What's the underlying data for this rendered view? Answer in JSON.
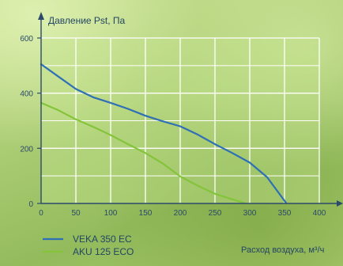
{
  "chart_data": {
    "type": "line",
    "ylabel": "Давление Pst, Па",
    "xlabel": "Расход воздуха, м³/ч",
    "xlim": [
      0,
      400
    ],
    "ylim": [
      0,
      600
    ],
    "x_ticks": [
      0,
      50,
      100,
      150,
      200,
      250,
      300,
      350,
      400
    ],
    "y_ticks": [
      0,
      200,
      400,
      600
    ],
    "grid": true,
    "legend_position": "bottom-left",
    "series": [
      {
        "name": "VEKA 350 EC",
        "color": "#2f6fb5",
        "x": [
          0,
          25,
          50,
          75,
          100,
          125,
          150,
          175,
          200,
          225,
          250,
          275,
          300,
          325,
          352
        ],
        "y": [
          505,
          460,
          415,
          385,
          365,
          343,
          318,
          298,
          280,
          250,
          215,
          183,
          148,
          95,
          3
        ]
      },
      {
        "name": "AKU 125 ECO",
        "color": "#84c43a",
        "x": [
          0,
          25,
          50,
          75,
          100,
          125,
          150,
          175,
          200,
          225,
          250,
          275,
          292
        ],
        "y": [
          365,
          338,
          305,
          278,
          248,
          215,
          183,
          145,
          98,
          65,
          35,
          15,
          2
        ]
      }
    ]
  }
}
